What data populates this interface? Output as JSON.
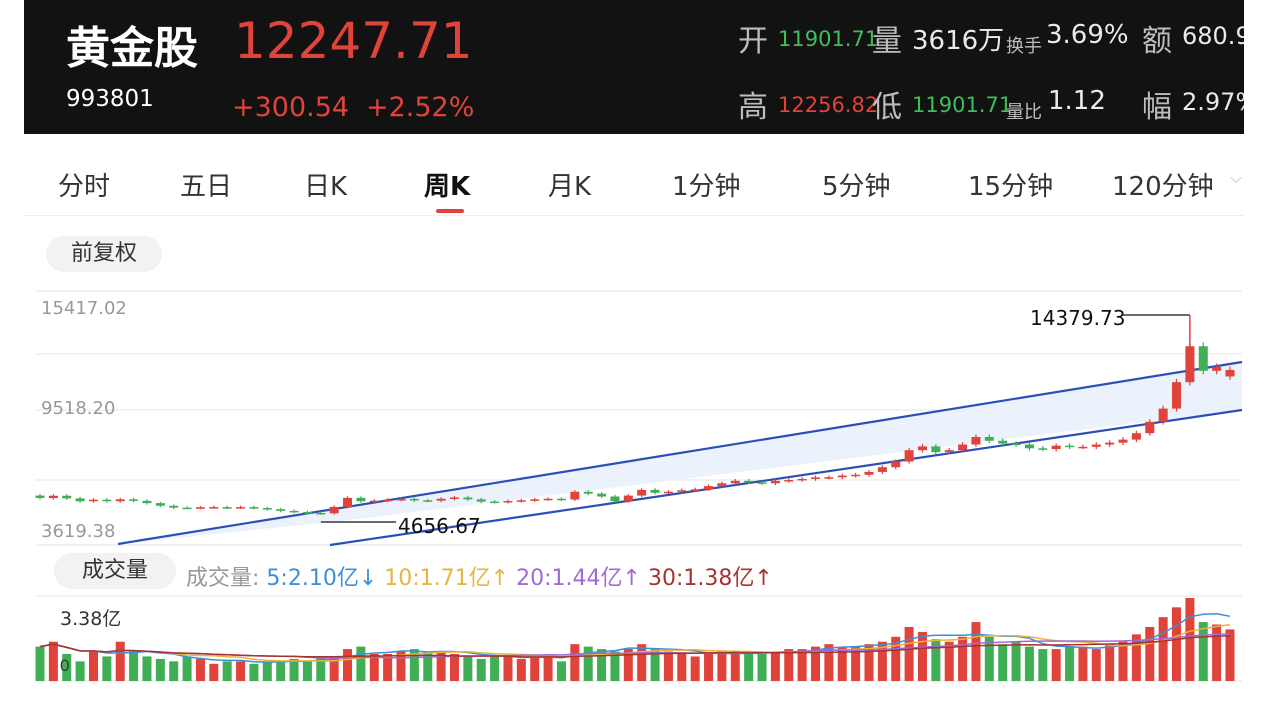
{
  "header": {
    "name": "黄金股",
    "price": "12247.71",
    "code": "993801",
    "change": "+300.54",
    "change_pct": "+2.52%",
    "quote": {
      "open_label": "开",
      "open": "11901.71",
      "vol_label": "量",
      "vol": "3616万",
      "turnover_label": "换手",
      "turnover": "3.69%",
      "amount_label": "额",
      "amount": "680.9",
      "high_label": "高",
      "high": "12256.82",
      "low_label": "低",
      "low": "11901.71",
      "ratio_label": "量比",
      "ratio": "1.12",
      "amp_label": "幅",
      "amp": "2.97%"
    }
  },
  "tabs": [
    {
      "label": "分时"
    },
    {
      "label": "五日"
    },
    {
      "label": "日K"
    },
    {
      "label": "周K",
      "active": true
    },
    {
      "label": "月K"
    },
    {
      "label": "1分钟"
    },
    {
      "label": "5分钟"
    },
    {
      "label": "15分钟"
    },
    {
      "label": "120分钟"
    }
  ],
  "adjust_label": "前复权",
  "price_axis": {
    "top": "15417.02",
    "mid": "9518.20",
    "bottom": "3619.38"
  },
  "annotations": {
    "high": "14379.73",
    "low": "4656.67"
  },
  "volume": {
    "title": "成交量",
    "legend_label": "成交量:",
    "ma": [
      {
        "text": "5:2.10亿",
        "arrow": "↓",
        "color": "#3e8fd8"
      },
      {
        "text": "10:1.71亿",
        "arrow": "↑",
        "color": "#e7b53a"
      },
      {
        "text": "20:1.44亿",
        "arrow": "↑",
        "color": "#a06ad6"
      },
      {
        "text": "30:1.38亿",
        "arrow": "↑",
        "color": "#a8322e"
      }
    ],
    "axis_top": "3.38亿",
    "axis_zero": "0"
  },
  "colors": {
    "up": "#e0433a",
    "down": "#3fae55",
    "channel": "#2a4fb8"
  },
  "chart_data": {
    "type": "candlestick",
    "period": "weekly",
    "ylim": [
      3619.38,
      15417.02
    ],
    "closes": [
      5470,
      5590,
      5450,
      5300,
      5380,
      5300,
      5400,
      5320,
      5200,
      5060,
      4960,
      4950,
      4980,
      4990,
      4960,
      4990,
      4940,
      4880,
      4790,
      4730,
      4680,
      4660,
      5000,
      5480,
      5300,
      5330,
      5380,
      5420,
      5350,
      5330,
      5430,
      5500,
      5400,
      5280,
      5260,
      5310,
      5350,
      5400,
      5430,
      5390,
      5800,
      5700,
      5550,
      5300,
      5600,
      5900,
      5750,
      5800,
      5880,
      5930,
      6100,
      6250,
      6380,
      6300,
      6250,
      6380,
      6420,
      6480,
      6560,
      6570,
      6660,
      6700,
      6850,
      7100,
      7400,
      8000,
      8200,
      7900,
      8000,
      8300,
      8700,
      8500,
      8350,
      8300,
      8100,
      8060,
      8240,
      8180,
      8180,
      8300,
      8400,
      8560,
      8900,
      9500,
      10200,
      11600,
      13500,
      12200,
      12400,
      12247.71
    ],
    "opens": [
      5600,
      5470,
      5590,
      5450,
      5300,
      5380,
      5300,
      5400,
      5320,
      5200,
      5060,
      4960,
      4950,
      4980,
      4990,
      4960,
      4990,
      4940,
      4880,
      4790,
      4730,
      4680,
      4660,
      5000,
      5480,
      5300,
      5330,
      5380,
      5420,
      5350,
      5330,
      5430,
      5500,
      5400,
      5280,
      5260,
      5310,
      5350,
      5400,
      5430,
      5390,
      5800,
      5700,
      5550,
      5300,
      5600,
      5900,
      5750,
      5800,
      5880,
      5930,
      6100,
      6250,
      6380,
      6300,
      6250,
      6380,
      6420,
      6480,
      6560,
      6570,
      6660,
      6700,
      6850,
      7100,
      7400,
      8000,
      8200,
      7900,
      8000,
      8300,
      8700,
      8500,
      8350,
      8300,
      8100,
      8060,
      8240,
      8180,
      8180,
      8300,
      8400,
      8560,
      8900,
      9500,
      10200,
      11600,
      13500,
      12200,
      11901.71
    ],
    "volume": [
      1.4,
      1.6,
      1.1,
      0.8,
      1.2,
      1.0,
      1.6,
      1.2,
      1.0,
      0.9,
      0.8,
      1.0,
      0.9,
      0.7,
      0.8,
      0.8,
      0.7,
      0.8,
      0.8,
      0.9,
      0.8,
      1.0,
      0.9,
      1.3,
      1.4,
      1.1,
      1.1,
      1.2,
      1.3,
      1.2,
      1.2,
      1.1,
      1.0,
      0.9,
      1.0,
      1.0,
      0.9,
      1.0,
      1.0,
      0.8,
      1.5,
      1.4,
      1.3,
      1.2,
      1.3,
      1.5,
      1.3,
      1.2,
      1.1,
      1.0,
      1.1,
      1.2,
      1.2,
      1.1,
      1.1,
      1.2,
      1.3,
      1.3,
      1.4,
      1.5,
      1.4,
      1.4,
      1.5,
      1.6,
      1.8,
      2.2,
      2.0,
      1.7,
      1.6,
      1.8,
      2.4,
      1.8,
      1.5,
      1.6,
      1.4,
      1.3,
      1.3,
      1.4,
      1.4,
      1.3,
      1.5,
      1.6,
      1.9,
      2.2,
      2.6,
      3.0,
      3.38,
      2.4,
      2.3,
      2.1
    ],
    "ylim_volume": [
      0,
      3.38
    ]
  }
}
